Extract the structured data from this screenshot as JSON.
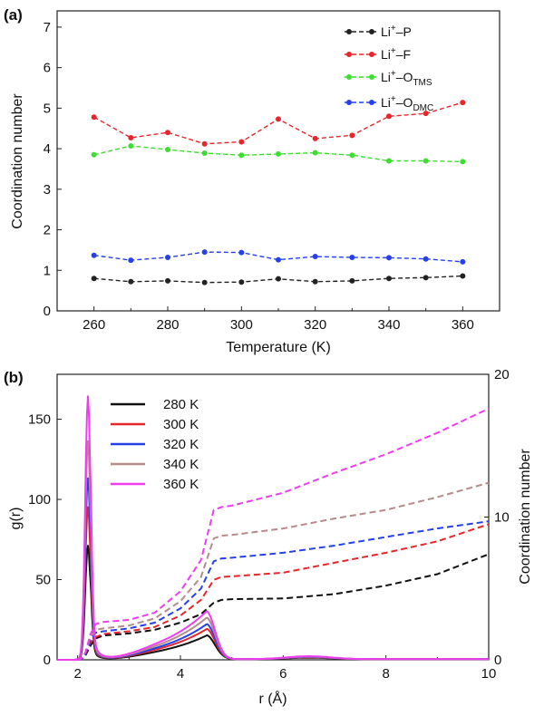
{
  "panel_a": {
    "label": "(a)",
    "legend": [
      {
        "prefix": "Li",
        "sup": "+",
        "mid": "–P",
        "sub": ""
      },
      {
        "prefix": "Li",
        "sup": "+",
        "mid": "–F",
        "sub": ""
      },
      {
        "prefix": "Li",
        "sup": "+",
        "mid": "–O",
        "sub": "TMS"
      },
      {
        "prefix": "Li",
        "sup": "+",
        "mid": "–O",
        "sub": "DMC"
      }
    ]
  },
  "panel_b": {
    "label": "(b)"
  },
  "chart_data": [
    {
      "type": "line",
      "title": "(a)",
      "xlabel": "Temperature (K)",
      "ylabel": "Coordination number",
      "xlim": [
        250,
        370
      ],
      "ylim": [
        0,
        7.4
      ],
      "xticks": [
        260,
        280,
        300,
        320,
        340,
        360
      ],
      "yticks": [
        0,
        1,
        2,
        3,
        4,
        5,
        6,
        7
      ],
      "x": [
        260,
        270,
        280,
        290,
        300,
        310,
        320,
        330,
        340,
        350,
        360
      ],
      "series": [
        {
          "name": "Li+–P",
          "color": "#222222",
          "values": [
            0.8,
            0.72,
            0.74,
            0.7,
            0.71,
            0.79,
            0.72,
            0.74,
            0.8,
            0.82,
            0.86
          ]
        },
        {
          "name": "Li+–F",
          "color": "#e8252a",
          "values": [
            4.78,
            4.27,
            4.4,
            4.12,
            4.17,
            4.73,
            4.25,
            4.33,
            4.8,
            4.87,
            5.14
          ]
        },
        {
          "name": "Li+–O_TMS",
          "color": "#3fdc32",
          "values": [
            3.85,
            4.07,
            3.98,
            3.89,
            3.84,
            3.87,
            3.9,
            3.84,
            3.7,
            3.7,
            3.68
          ]
        },
        {
          "name": "Li+–O_DMC",
          "color": "#2540e8",
          "values": [
            1.37,
            1.25,
            1.32,
            1.45,
            1.44,
            1.26,
            1.34,
            1.32,
            1.31,
            1.28,
            1.21
          ]
        }
      ],
      "legend_position": "top-right"
    },
    {
      "type": "line",
      "title": "(b)",
      "xlabel": "r (Å)",
      "ylabel": "g(r)",
      "ylabel_right": "Coordination number",
      "xlim": [
        1.6,
        10
      ],
      "ylim": [
        0,
        178
      ],
      "ylim_right": [
        0,
        20
      ],
      "xticks": [
        2,
        4,
        6,
        8,
        10
      ],
      "yticks": [
        0,
        50,
        100,
        150
      ],
      "yticks_right": [
        0,
        10,
        20
      ],
      "legend_position": "top-left",
      "series": [
        {
          "name": "280 K",
          "color": "#111111",
          "gr_peak1": 71,
          "gr_peak2": 15,
          "cn": [
            [
              1.6,
              0
            ],
            [
              2.05,
              0
            ],
            [
              2.15,
              0.3
            ],
            [
              2.25,
              1.0
            ],
            [
              2.35,
              1.5
            ],
            [
              2.5,
              1.7
            ],
            [
              3.0,
              1.85
            ],
            [
              3.5,
              2.1
            ],
            [
              4.0,
              2.6
            ],
            [
              4.4,
              3.2
            ],
            [
              4.65,
              4.0
            ],
            [
              4.8,
              4.2
            ],
            [
              5.0,
              4.25
            ],
            [
              6.0,
              4.3
            ],
            [
              7.0,
              4.6
            ],
            [
              8.0,
              5.2
            ],
            [
              9.0,
              6.0
            ],
            [
              10,
              7.4
            ]
          ]
        },
        {
          "name": "300 K",
          "color": "#e8252a",
          "gr_peak1": 95,
          "gr_peak2": 19,
          "cn": [
            [
              1.6,
              0
            ],
            [
              2.05,
              0
            ],
            [
              2.15,
              0.4
            ],
            [
              2.25,
              1.2
            ],
            [
              2.35,
              1.6
            ],
            [
              2.5,
              1.8
            ],
            [
              3.0,
              2.0
            ],
            [
              3.5,
              2.3
            ],
            [
              4.0,
              3.1
            ],
            [
              4.4,
              4.2
            ],
            [
              4.65,
              5.6
            ],
            [
              4.8,
              5.8
            ],
            [
              5.0,
              5.85
            ],
            [
              6.0,
              6.1
            ],
            [
              7.0,
              6.8
            ],
            [
              8.0,
              7.5
            ],
            [
              9.0,
              8.3
            ],
            [
              10,
              9.5
            ]
          ]
        },
        {
          "name": "320 K",
          "color": "#2540e8",
          "gr_peak1": 113,
          "gr_peak2": 22,
          "cn": [
            [
              1.6,
              0
            ],
            [
              2.05,
              0
            ],
            [
              2.15,
              0.4
            ],
            [
              2.25,
              1.4
            ],
            [
              2.35,
              1.9
            ],
            [
              2.5,
              2.0
            ],
            [
              3.0,
              2.2
            ],
            [
              3.5,
              2.6
            ],
            [
              4.0,
              3.6
            ],
            [
              4.4,
              5.0
            ],
            [
              4.65,
              6.9
            ],
            [
              4.8,
              7.1
            ],
            [
              5.0,
              7.15
            ],
            [
              6.0,
              7.5
            ],
            [
              7.0,
              8.0
            ],
            [
              8.0,
              8.6
            ],
            [
              9.0,
              9.2
            ],
            [
              10,
              9.7
            ]
          ]
        },
        {
          "name": "340 K",
          "color": "#b58a8a",
          "gr_peak1": 136,
          "gr_peak2": 26,
          "cn": [
            [
              1.6,
              0
            ],
            [
              2.05,
              0
            ],
            [
              2.15,
              0.5
            ],
            [
              2.25,
              1.6
            ],
            [
              2.35,
              2.1
            ],
            [
              2.5,
              2.2
            ],
            [
              3.0,
              2.4
            ],
            [
              3.5,
              2.9
            ],
            [
              4.0,
              4.1
            ],
            [
              4.4,
              5.8
            ],
            [
              4.65,
              8.5
            ],
            [
              4.8,
              8.7
            ],
            [
              5.0,
              8.75
            ],
            [
              6.0,
              9.2
            ],
            [
              7.0,
              9.9
            ],
            [
              8.0,
              10.5
            ],
            [
              9.0,
              11.4
            ],
            [
              10,
              12.4
            ]
          ]
        },
        {
          "name": "360 K",
          "color": "#f03cf0",
          "gr_peak1": 164,
          "gr_peak2": 30,
          "cn": [
            [
              1.6,
              0
            ],
            [
              2.05,
              0
            ],
            [
              2.15,
              0.5
            ],
            [
              2.25,
              1.8
            ],
            [
              2.35,
              2.5
            ],
            [
              2.5,
              2.65
            ],
            [
              3.0,
              2.8
            ],
            [
              3.5,
              3.3
            ],
            [
              4.0,
              4.8
            ],
            [
              4.4,
              7.0
            ],
            [
              4.65,
              10.5
            ],
            [
              4.8,
              10.7
            ],
            [
              5.0,
              10.8
            ],
            [
              6.0,
              11.7
            ],
            [
              7.0,
              13.1
            ],
            [
              8.0,
              14.4
            ],
            [
              9.0,
              15.9
            ],
            [
              10,
              17.6
            ]
          ]
        }
      ]
    }
  ]
}
